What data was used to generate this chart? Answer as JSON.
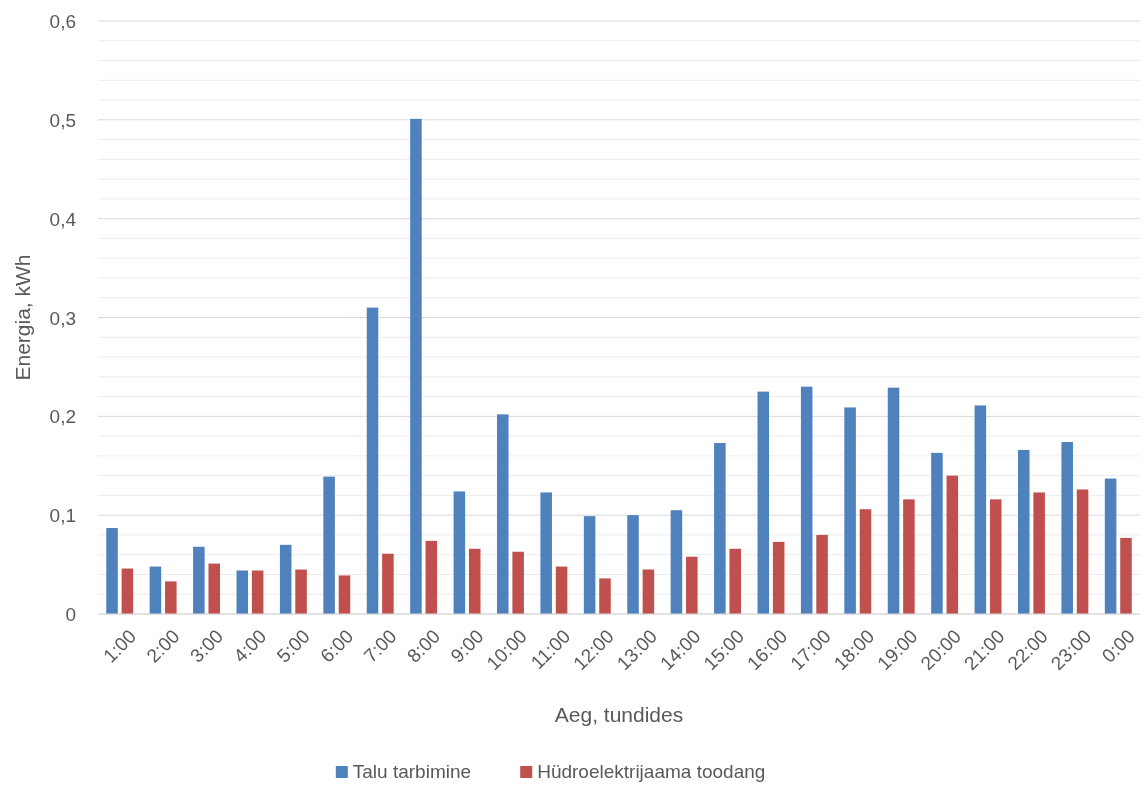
{
  "chart_data": {
    "type": "bar",
    "xlabel": "Aeg, tundides",
    "ylabel": "Energia, kWh",
    "categories": [
      "1:00",
      "2:00",
      "3:00",
      "4:00",
      "5:00",
      "6:00",
      "7:00",
      "8:00",
      "9:00",
      "10:00",
      "11:00",
      "12:00",
      "13:00",
      "14:00",
      "15:00",
      "16:00",
      "17:00",
      "18:00",
      "19:00",
      "20:00",
      "21:00",
      "22:00",
      "23:00",
      "0:00"
    ],
    "series": [
      {
        "name": "Talu tarbimine",
        "color": "#4f81bd",
        "values": [
          0.087,
          0.048,
          0.068,
          0.044,
          0.07,
          0.139,
          0.31,
          0.501,
          0.124,
          0.202,
          0.123,
          0.099,
          0.1,
          0.105,
          0.173,
          0.225,
          0.23,
          0.209,
          0.229,
          0.163,
          0.211,
          0.166,
          0.174,
          0.137
        ]
      },
      {
        "name": "Hüdroelektrijaama toodang",
        "color": "#c0504d",
        "values": [
          0.046,
          0.033,
          0.051,
          0.044,
          0.045,
          0.039,
          0.061,
          0.074,
          0.066,
          0.063,
          0.048,
          0.036,
          0.045,
          0.058,
          0.066,
          0.073,
          0.08,
          0.106,
          0.116,
          0.14,
          0.116,
          0.123,
          0.126,
          0.077
        ]
      }
    ],
    "ylim": [
      0,
      0.6
    ],
    "yticks": [
      {
        "value": 0,
        "label": "0"
      },
      {
        "value": 0.02,
        "label": null
      },
      {
        "value": 0.04,
        "label": null
      },
      {
        "value": 0.06,
        "label": null
      },
      {
        "value": 0.08,
        "label": null
      },
      {
        "value": 0.1,
        "label": "0,1"
      },
      {
        "value": 0.12,
        "label": null
      },
      {
        "value": 0.14,
        "label": null
      },
      {
        "value": 0.16,
        "label": null
      },
      {
        "value": 0.18,
        "label": null
      },
      {
        "value": 0.2,
        "label": "0,2"
      },
      {
        "value": 0.22,
        "label": null
      },
      {
        "value": 0.24,
        "label": null
      },
      {
        "value": 0.26,
        "label": null
      },
      {
        "value": 0.28,
        "label": null
      },
      {
        "value": 0.3,
        "label": "0,3"
      },
      {
        "value": 0.32,
        "label": null
      },
      {
        "value": 0.34,
        "label": null
      },
      {
        "value": 0.36,
        "label": null
      },
      {
        "value": 0.38,
        "label": null
      },
      {
        "value": 0.4,
        "label": "0,4"
      },
      {
        "value": 0.42,
        "label": null
      },
      {
        "value": 0.44,
        "label": null
      },
      {
        "value": 0.46,
        "label": null
      },
      {
        "value": 0.48,
        "label": null
      },
      {
        "value": 0.5,
        "label": "0,5"
      },
      {
        "value": 0.52,
        "label": null
      },
      {
        "value": 0.54,
        "label": null
      },
      {
        "value": 0.56,
        "label": null
      },
      {
        "value": 0.58,
        "label": null
      },
      {
        "value": 0.6,
        "label": "0,6"
      }
    ],
    "grid": "y",
    "legend": "bottom"
  }
}
